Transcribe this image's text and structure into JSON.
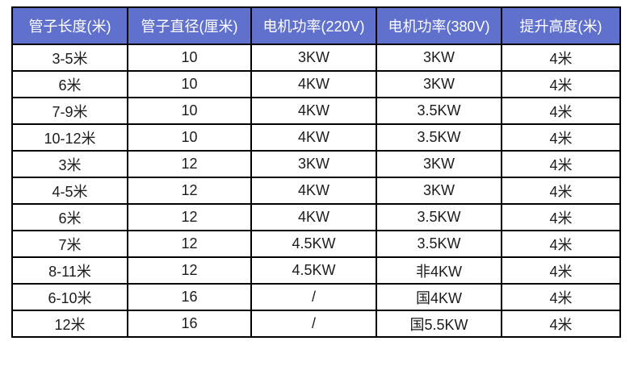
{
  "page": {
    "background_color": "#ffffff",
    "border_color": "#000000",
    "header_bg_color": "#6070cd",
    "header_text_color": "#ffffff",
    "cell_text_color": "#1c1c1c"
  },
  "chart_data": {
    "type": "table",
    "title": "",
    "columns": [
      "管子长度(米)",
      "管子直径(厘米)",
      "电机功率(220V)",
      "电机功率(380V)",
      "提升高度(米)"
    ],
    "rows": [
      [
        "3-5米",
        "10",
        "3KW",
        "3KW",
        "4米"
      ],
      [
        "6米",
        "10",
        "4KW",
        "3KW",
        "4米"
      ],
      [
        "7-9米",
        "10",
        "4KW",
        "3.5KW",
        "4米"
      ],
      [
        "10-12米",
        "10",
        "4KW",
        "3.5KW",
        "4米"
      ],
      [
        "3米",
        "12",
        "3KW",
        "3KW",
        "4米"
      ],
      [
        "4-5米",
        "12",
        "4KW",
        "3KW",
        "4米"
      ],
      [
        "6米",
        "12",
        "4KW",
        "3.5KW",
        "4米"
      ],
      [
        "7米",
        "12",
        "4.5KW",
        "3.5KW",
        "4米"
      ],
      [
        "8-11米",
        "12",
        "4.5KW",
        "非4KW",
        "4米"
      ],
      [
        "6-10米",
        "16",
        "/",
        "国4KW",
        "4米"
      ],
      [
        "12米",
        "16",
        "/",
        "国5.5KW",
        "4米"
      ]
    ]
  }
}
